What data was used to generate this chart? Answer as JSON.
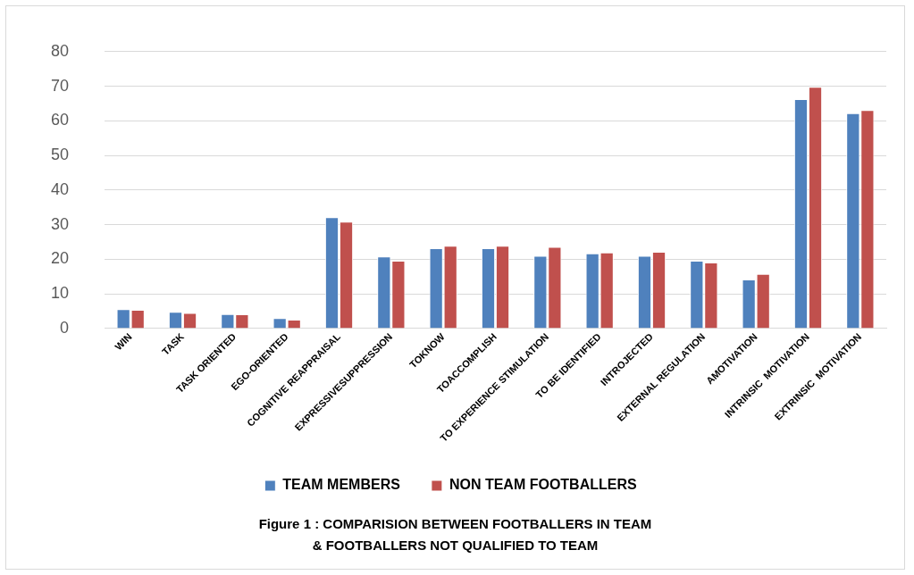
{
  "chart_data": {
    "type": "bar",
    "title": "Figure 1 : COMPARISION BETWEEN FOOTBALLERS IN TEAM\n& FOOTBALLERS NOT QUALIFIED TO TEAM",
    "categories": [
      "WIN",
      "TASK",
      "TASK ORIENTED",
      "EGO-ORIENTED",
      "COGNITIVE REAPPRAISAL",
      "EXPRESSIVESUPPRESSION",
      "TOKNOW",
      "TOACCOMPLISH",
      "TO EXPERIENCE STIMULATION",
      "TO BE IDENTIFIED",
      "INTROJECTED",
      "EXTERNAL REGULATION",
      "AMOTIVATION",
      "INTRINSIC  MOTIVATION",
      "EXTRINSIC  MOTIVATION"
    ],
    "series": [
      {
        "name": "TEAM MEMBERS",
        "color": "#4f81bd",
        "values": [
          5.6,
          4.8,
          4.2,
          3.0,
          32.2,
          20.8,
          23.2,
          23.2,
          21.0,
          21.7,
          21.0,
          19.6,
          14.2,
          66.3,
          62.2
        ]
      },
      {
        "name": "NON TEAM FOOTBALLERS",
        "color": "#c0504d",
        "values": [
          5.4,
          4.5,
          4.1,
          2.6,
          30.9,
          19.6,
          23.9,
          23.9,
          23.6,
          22.0,
          22.2,
          19.1,
          15.8,
          69.8,
          63.1
        ]
      }
    ],
    "ylim": [
      0,
      80
    ],
    "yticks": [
      0,
      10,
      20,
      30,
      40,
      50,
      60,
      70,
      80
    ],
    "grid": "y",
    "legend": "bottom"
  }
}
